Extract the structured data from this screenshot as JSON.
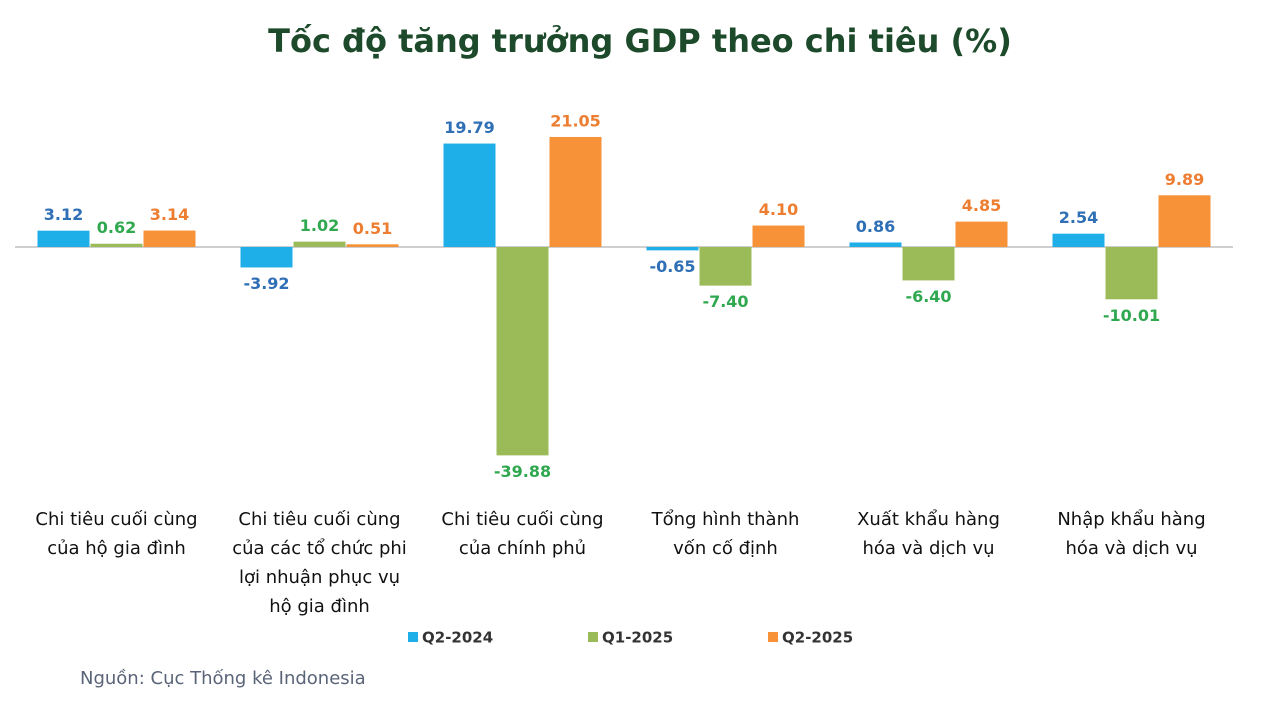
{
  "chart_data": {
    "type": "bar",
    "title": "Tốc độ tăng trưởng GDP theo chi tiêu (%)",
    "categories": [
      "Chi tiêu cuối cùng của hộ gia đình",
      "Chi tiêu cuối cùng của các tổ chức phi lợi nhuận phục vụ hộ gia đình",
      "Chi tiêu cuối cùng của chính phủ",
      "Tổng hình thành vốn cố định",
      "Xuất khẩu hàng hóa và dịch vụ",
      "Nhập khẩu hàng hóa và dịch vụ"
    ],
    "series": [
      {
        "name": "Q2-2024",
        "color": "#1eaee8",
        "label_color": "#2f6fb5",
        "values": [
          3.12,
          -3.92,
          19.79,
          -0.65,
          0.86,
          2.54
        ],
        "value_labels": [
          "3.12",
          "-3.92",
          "19.79",
          "-0.65",
          "0.86",
          "2.54"
        ]
      },
      {
        "name": "Q1-2025",
        "color": "#9bbb59",
        "label_color": "#2fa84f",
        "values": [
          0.62,
          1.02,
          -39.88,
          -7.4,
          -6.4,
          -10.01
        ],
        "value_labels": [
          "0.62",
          "1.02",
          "-39.88",
          "-7.40",
          "-6.40",
          "-10.01"
        ]
      },
      {
        "name": "Q2-2025",
        "color": "#f79239",
        "label_color": "#ed7d31",
        "values": [
          3.14,
          0.51,
          21.05,
          4.1,
          4.85,
          9.89
        ],
        "value_labels": [
          "3.14",
          "0.51",
          "21.05",
          "4.10",
          "4.85",
          "9.89"
        ]
      }
    ],
    "ylim": [
      -40,
      22
    ],
    "source": "Nguồn: Cục Thống kê Indonesia"
  }
}
